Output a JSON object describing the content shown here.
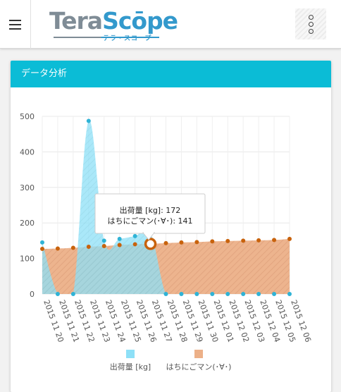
{
  "header": {
    "logo_text_gray": "Tera",
    "logo_text_blue": "Scōpe",
    "logo_sub": "テラ・スコープ"
  },
  "card": {
    "title": "データ分析"
  },
  "tooltip": {
    "line1": "出荷量 [kg]: 172",
    "line2": "はちにごマン(･∀･): 141"
  },
  "colors": {
    "accent": "#0bbcd6",
    "series1": "#8ee0f7",
    "series1_point": "#2fb3d6",
    "series2": "#ecb088",
    "series2_point": "#c8620c"
  },
  "chart_data": {
    "type": "area",
    "x": [
      "2015 11 20",
      "2015 11 21",
      "2015 11 22",
      "2015 11 23",
      "2015 11 24",
      "2015 11 25",
      "2015 11 26",
      "2015 11 27",
      "2015 11 28",
      "2015 11 29",
      "2015 11 30",
      "2015 12 01",
      "2015 12 02",
      "2015 12 03",
      "2015 12 04",
      "2015 12 05",
      "2015 12 06"
    ],
    "ylim": [
      0,
      500
    ],
    "yticks": [
      0,
      100,
      200,
      300,
      400,
      500
    ],
    "grid": true,
    "legend_position": "bottom",
    "series": [
      {
        "name": "出荷量 [kg]",
        "values": [
          145,
          0,
          0,
          487,
          150,
          155,
          163,
          172,
          0,
          0,
          0,
          0,
          0,
          0,
          0,
          0,
          0
        ]
      },
      {
        "name": "はちにごマン(･∀･)",
        "values": [
          127,
          128,
          130,
          133,
          135,
          138,
          140,
          141,
          143,
          145,
          146,
          148,
          149,
          150,
          151,
          152,
          155
        ]
      }
    ]
  }
}
